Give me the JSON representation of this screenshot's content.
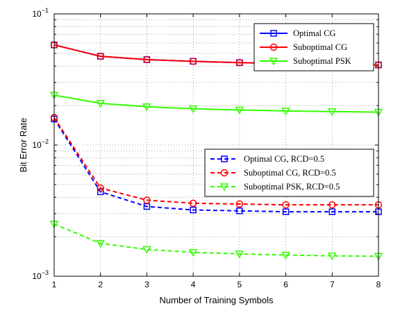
{
  "chart_data": {
    "type": "line",
    "xlabel": "Number of Training Symbols",
    "ylabel": "Bit Error Rate",
    "x": [
      1,
      2,
      3,
      4,
      5,
      6,
      7,
      8
    ],
    "xlim": [
      1,
      8
    ],
    "ylim": [
      0.001,
      0.1
    ],
    "yscale": "log",
    "x_tick_labels": [
      "1",
      "2",
      "3",
      "4",
      "5",
      "6",
      "7",
      "8"
    ],
    "y_tick_labels": [
      {
        "base": "10",
        "exp": "−1",
        "value": 0.1
      },
      {
        "base": "10",
        "exp": "−2",
        "value": 0.01
      },
      {
        "base": "10",
        "exp": "−3",
        "value": 0.001
      }
    ],
    "grid": true,
    "series": [
      {
        "name": "Optimal CG",
        "color": "#0000ff",
        "dashed": false,
        "marker": "square",
        "legend": 1,
        "values": [
          0.058,
          0.0475,
          0.0448,
          0.0435,
          0.0425,
          0.0418,
          0.0412,
          0.0408
        ]
      },
      {
        "name": "Suboptimal CG",
        "color": "#ff0000",
        "dashed": false,
        "marker": "circle",
        "legend": 1,
        "values": [
          0.058,
          0.0475,
          0.0448,
          0.0435,
          0.0425,
          0.0418,
          0.0412,
          0.0408
        ]
      },
      {
        "name": "Suboptimal PSK",
        "color": "#33ff00",
        "dashed": false,
        "marker": "triangle-down",
        "legend": 1,
        "values": [
          0.024,
          0.0208,
          0.0196,
          0.0189,
          0.0185,
          0.0182,
          0.018,
          0.0178
        ]
      },
      {
        "name": "Optimal CG, RCD=0.5",
        "color": "#0000ff",
        "dashed": true,
        "marker": "square",
        "legend": 2,
        "values": [
          0.0158,
          0.0044,
          0.0034,
          0.0032,
          0.00315,
          0.0031,
          0.0031,
          0.0031
        ]
      },
      {
        "name": "Suboptimal CG, RCD=0.5",
        "color": "#ff0000",
        "dashed": true,
        "marker": "circle",
        "legend": 2,
        "values": [
          0.0162,
          0.0047,
          0.0038,
          0.0036,
          0.00355,
          0.0035,
          0.0035,
          0.0035
        ]
      },
      {
        "name": "Suboptimal PSK, RCD=0.5",
        "color": "#33ff00",
        "dashed": true,
        "marker": "triangle-down",
        "legend": 2,
        "values": [
          0.0025,
          0.00178,
          0.0016,
          0.00152,
          0.00148,
          0.00145,
          0.00143,
          0.00142
        ]
      }
    ],
    "legend_placement": [
      "top-right",
      "center-right"
    ]
  }
}
